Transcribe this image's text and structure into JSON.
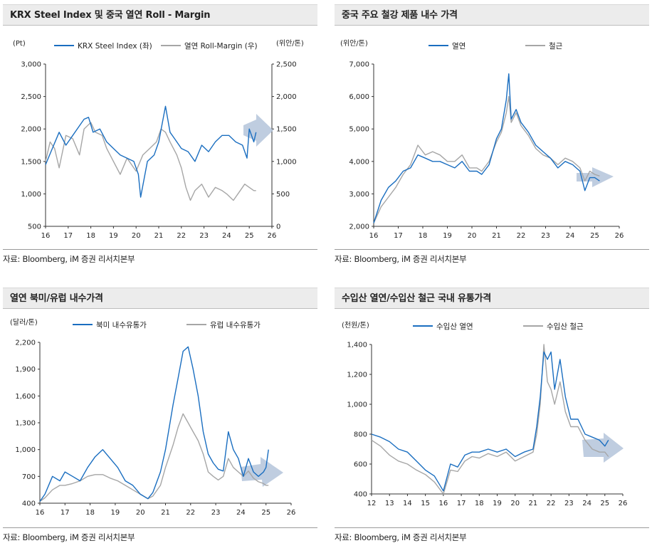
{
  "source_text": "자료: Bloomberg, iM 증권 리서치본부",
  "colors": {
    "blue": "#1a6ec0",
    "gray": "#a6a6a6",
    "arrow": "#b4c4da"
  },
  "chart_data": [
    {
      "type": "line",
      "title": "KRX Steel Index 및 중국 열연 Roll - Margin",
      "unit_left": "(Pt)",
      "unit_right": "(위안/톤)",
      "x_ticks": [
        "16",
        "17",
        "18",
        "19",
        "20",
        "21",
        "22",
        "23",
        "24",
        "25",
        "26"
      ],
      "xlim": [
        16,
        26
      ],
      "yticks_left": [
        "3,000",
        "2,500",
        "2,000",
        "1,500",
        "1,000",
        "500"
      ],
      "ylim_left": [
        500,
        3000
      ],
      "yticks_right": [
        "2,500",
        "2,000",
        "1,500",
        "1,000",
        "500",
        "0"
      ],
      "ylim_right": [
        0,
        2500
      ],
      "series": [
        {
          "name": "KRX Steel Index (좌)",
          "axis": "left",
          "color": "#1a6ec0",
          "x": [
            16,
            16.3,
            16.6,
            16.9,
            17.2,
            17.5,
            17.7,
            17.9,
            18.1,
            18.4,
            18.7,
            19,
            19.3,
            19.6,
            19.9,
            20.1,
            20.2,
            20.5,
            20.8,
            21,
            21.3,
            21.5,
            21.7,
            22,
            22.3,
            22.6,
            22.9,
            23.2,
            23.5,
            23.8,
            24.1,
            24.4,
            24.7,
            24.9,
            25,
            25.2,
            25.3
          ],
          "y": [
            1450,
            1700,
            1950,
            1750,
            1900,
            2050,
            2150,
            2180,
            1950,
            2000,
            1800,
            1700,
            1600,
            1550,
            1500,
            1300,
            950,
            1500,
            1600,
            1800,
            2350,
            1950,
            1850,
            1700,
            1650,
            1500,
            1750,
            1650,
            1800,
            1900,
            1900,
            1800,
            1750,
            1550,
            2000,
            1800,
            1950
          ]
        },
        {
          "name": "열연 Roll-Margin (우)",
          "axis": "right",
          "color": "#a6a6a6",
          "x": [
            16,
            16.2,
            16.4,
            16.6,
            16.9,
            17.2,
            17.5,
            17.7,
            18,
            18.2,
            18.5,
            18.7,
            19,
            19.3,
            19.6,
            20,
            20.3,
            20.6,
            20.9,
            21.1,
            21.3,
            21.5,
            21.8,
            22,
            22.2,
            22.4,
            22.6,
            22.9,
            23.2,
            23.5,
            23.8,
            24,
            24.3,
            24.6,
            24.8,
            25,
            25.2,
            25.3
          ],
          "y": [
            1000,
            1300,
            1200,
            900,
            1400,
            1350,
            1100,
            1500,
            1600,
            1450,
            1400,
            1200,
            1000,
            800,
            1050,
            850,
            1100,
            1200,
            1300,
            1500,
            1450,
            1300,
            1100,
            900,
            600,
            400,
            550,
            650,
            450,
            600,
            550,
            500,
            400,
            550,
            650,
            600,
            550,
            550
          ]
        }
      ]
    },
    {
      "type": "line",
      "title": "중국 주요 철강 제품 내수 가격",
      "unit_left": "(위안/톤)",
      "x_ticks": [
        "16",
        "17",
        "18",
        "19",
        "20",
        "21",
        "22",
        "23",
        "24",
        "25",
        "26"
      ],
      "xlim": [
        16,
        26
      ],
      "yticks_left": [
        "7,000",
        "6,000",
        "5,000",
        "4,000",
        "3,000",
        "2,000"
      ],
      "ylim_left": [
        2000,
        7000
      ],
      "series": [
        {
          "name": "열연",
          "color": "#1a6ec0",
          "x": [
            16,
            16.3,
            16.6,
            16.9,
            17.2,
            17.5,
            17.8,
            18.1,
            18.4,
            18.7,
            19,
            19.3,
            19.6,
            19.9,
            20.2,
            20.4,
            20.7,
            21,
            21.2,
            21.4,
            21.5,
            21.6,
            21.8,
            22,
            22.3,
            22.6,
            22.9,
            23.2,
            23.5,
            23.8,
            24.1,
            24.4,
            24.6,
            24.8,
            25,
            25.2
          ],
          "y": [
            2100,
            2800,
            3200,
            3400,
            3700,
            3800,
            4200,
            4100,
            4000,
            4000,
            3900,
            3800,
            4000,
            3700,
            3700,
            3600,
            3900,
            4700,
            5000,
            5900,
            6700,
            5300,
            5600,
            5200,
            4900,
            4500,
            4300,
            4100,
            3800,
            4000,
            3900,
            3700,
            3100,
            3500,
            3500,
            3400
          ]
        },
        {
          "name": "철근",
          "color": "#a6a6a6",
          "x": [
            16,
            16.3,
            16.6,
            16.9,
            17.2,
            17.5,
            17.8,
            18.1,
            18.4,
            18.7,
            19,
            19.3,
            19.6,
            19.9,
            20.2,
            20.4,
            20.7,
            21,
            21.2,
            21.4,
            21.5,
            21.6,
            21.8,
            22,
            22.3,
            22.6,
            22.9,
            23.2,
            23.5,
            23.8,
            24.1,
            24.4,
            24.6,
            24.8,
            25,
            25.2
          ],
          "y": [
            2100,
            2600,
            2900,
            3200,
            3600,
            3900,
            4500,
            4200,
            4300,
            4200,
            4000,
            4000,
            4200,
            3800,
            3800,
            3700,
            4000,
            4600,
            4900,
            5500,
            6000,
            5200,
            5500,
            5100,
            4800,
            4400,
            4200,
            4100,
            3900,
            4100,
            4000,
            3800,
            3400,
            3700,
            3600,
            3550
          ]
        }
      ]
    },
    {
      "type": "line",
      "title": "열연 북미/유럽 내수가격",
      "unit_left": "(달러/톤)",
      "x_ticks": [
        "16",
        "17",
        "18",
        "19",
        "20",
        "21",
        "22",
        "23",
        "24",
        "25",
        "26"
      ],
      "xlim": [
        16,
        26
      ],
      "yticks_left": [
        "2,200",
        "1,900",
        "1,600",
        "1,300",
        "1,000",
        "700",
        "400"
      ],
      "ylim_left": [
        400,
        2200
      ],
      "series": [
        {
          "name": "북미 내수유통가",
          "color": "#1a6ec0",
          "x": [
            16,
            16.2,
            16.5,
            16.8,
            17,
            17.3,
            17.6,
            17.9,
            18.2,
            18.5,
            18.8,
            19.1,
            19.4,
            19.7,
            20,
            20.3,
            20.5,
            20.8,
            21,
            21.3,
            21.5,
            21.7,
            21.9,
            22.1,
            22.3,
            22.5,
            22.7,
            22.9,
            23.1,
            23.3,
            23.5,
            23.7,
            23.9,
            24.1,
            24.3,
            24.5,
            24.7,
            24.9,
            25,
            25.1
          ],
          "y": [
            420,
            500,
            700,
            650,
            750,
            700,
            650,
            800,
            920,
            1000,
            900,
            800,
            650,
            600,
            500,
            450,
            520,
            750,
            1000,
            1500,
            1800,
            2100,
            2150,
            1900,
            1600,
            1200,
            950,
            850,
            780,
            760,
            1200,
            1000,
            900,
            700,
            900,
            750,
            700,
            750,
            800,
            1000
          ]
        },
        {
          "name": "유럽 내수유통가",
          "color": "#a6a6a6",
          "x": [
            16,
            16.2,
            16.5,
            16.8,
            17,
            17.3,
            17.6,
            17.9,
            18.2,
            18.5,
            18.8,
            19.1,
            19.4,
            19.7,
            20,
            20.3,
            20.5,
            20.8,
            21,
            21.3,
            21.5,
            21.7,
            21.9,
            22.1,
            22.3,
            22.5,
            22.7,
            22.9,
            23.1,
            23.3,
            23.5,
            23.7,
            23.9,
            24.1,
            24.3,
            24.5,
            24.7,
            24.9,
            25,
            25.1
          ],
          "y": [
            420,
            460,
            550,
            600,
            600,
            620,
            650,
            700,
            720,
            720,
            680,
            650,
            600,
            550,
            500,
            450,
            480,
            600,
            800,
            1050,
            1250,
            1400,
            1300,
            1200,
            1100,
            950,
            750,
            700,
            660,
            700,
            900,
            800,
            750,
            700,
            760,
            680,
            640,
            620,
            600,
            600
          ]
        }
      ]
    },
    {
      "type": "line",
      "title": "수입산 열연/수입산 철근 국내 유통가격",
      "unit_left": "(천원/톤)",
      "x_ticks": [
        "12",
        "13",
        "14",
        "15",
        "16",
        "17",
        "18",
        "19",
        "20",
        "21",
        "22",
        "23",
        "24",
        "25",
        "26"
      ],
      "xlim": [
        12,
        26
      ],
      "yticks_left": [
        "1,400",
        "1,200",
        "1,000",
        "800",
        "600",
        "400"
      ],
      "ylim_left": [
        400,
        1400
      ],
      "series": [
        {
          "name": "수입산 열연",
          "color": "#1a6ec0",
          "x": [
            12,
            12.5,
            13,
            13.5,
            14,
            14.5,
            15,
            15.5,
            16,
            16.4,
            16.8,
            17.2,
            17.6,
            18,
            18.5,
            19,
            19.5,
            20,
            20.5,
            21,
            21.2,
            21.4,
            21.6,
            21.8,
            22,
            22.2,
            22.5,
            22.8,
            23.1,
            23.5,
            23.9,
            24.3,
            24.7,
            25,
            25.2
          ],
          "y": [
            800,
            780,
            750,
            700,
            680,
            620,
            560,
            520,
            420,
            600,
            580,
            660,
            680,
            680,
            700,
            680,
            700,
            650,
            680,
            700,
            850,
            1050,
            1350,
            1300,
            1350,
            1100,
            1300,
            1050,
            900,
            900,
            800,
            780,
            760,
            720,
            760
          ]
        },
        {
          "name": "수입산 철근",
          "color": "#a6a6a6",
          "x": [
            12,
            12.5,
            13,
            13.5,
            14,
            14.5,
            15,
            15.5,
            16,
            16.4,
            16.8,
            17.2,
            17.6,
            18,
            18.5,
            19,
            19.5,
            20,
            20.5,
            21,
            21.2,
            21.4,
            21.6,
            21.8,
            22,
            22.2,
            22.5,
            22.8,
            23.1,
            23.5,
            23.9,
            24.3,
            24.7,
            25,
            25.2
          ],
          "y": [
            760,
            720,
            660,
            620,
            600,
            560,
            530,
            480,
            400,
            560,
            550,
            620,
            650,
            640,
            670,
            650,
            680,
            620,
            650,
            680,
            800,
            1000,
            1400,
            1150,
            1100,
            1000,
            1150,
            950,
            850,
            850,
            760,
            700,
            680,
            680,
            650
          ]
        }
      ]
    }
  ]
}
